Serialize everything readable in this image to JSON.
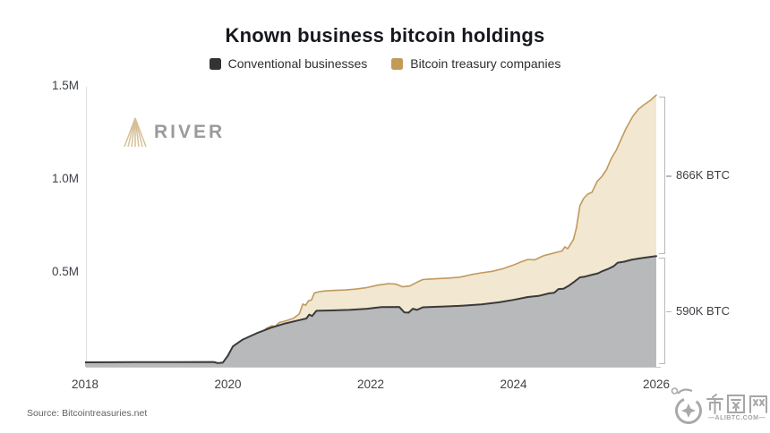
{
  "title": "Known business bitcoin holdings",
  "legend": {
    "items": [
      {
        "label": "Conventional businesses",
        "color": "#333333"
      },
      {
        "label": "Bitcoin treasury companies",
        "color": "#c49a58"
      }
    ]
  },
  "river_watermark": {
    "name": "RIVER"
  },
  "source_note": "Source: Bitcointreasuries.net",
  "site_watermark": {
    "site_name": "币圈网",
    "site_domain": "—ALIBTC.COM—"
  },
  "chart_data": {
    "type": "area",
    "stacked": true,
    "title": "Known business bitcoin holdings",
    "unit": "BTC",
    "grid": false,
    "legend_position": "top",
    "x_domain": [
      2018,
      2026
    ],
    "y_domain_btc": [
      0,
      1500000
    ],
    "x_ticks": [
      "2018",
      "2020",
      "2022",
      "2024",
      "2026"
    ],
    "x_tick_values": [
      2018,
      2020,
      2022,
      2024,
      2026
    ],
    "y_ticks": [
      {
        "label": "0.5M",
        "value_k": 500
      },
      {
        "label": "1.0M",
        "value_k": 1000
      },
      {
        "label": "1.5M",
        "value_k": 1500
      }
    ],
    "annotations": [
      {
        "label": "866K BTC",
        "series": "Bitcoin treasury companies",
        "from_k": 590,
        "to_k": 1456
      },
      {
        "label": "590K BTC",
        "series": "Conventional businesses",
        "from_k": 0,
        "to_k": 590
      }
    ],
    "series": [
      {
        "name": "Conventional businesses",
        "fill": "#b8b9bb",
        "line": "#3a3a3a",
        "points_k": [
          [
            2018.0,
            19
          ],
          [
            2018.7,
            20
          ],
          [
            2019.3,
            20
          ],
          [
            2019.8,
            21
          ],
          [
            2019.86,
            15
          ],
          [
            2019.93,
            18
          ],
          [
            2020.0,
            55
          ],
          [
            2020.07,
            105
          ],
          [
            2020.2,
            140
          ],
          [
            2020.4,
            175
          ],
          [
            2020.6,
            205
          ],
          [
            2020.8,
            228
          ],
          [
            2021.0,
            246
          ],
          [
            2021.1,
            255
          ],
          [
            2021.14,
            276
          ],
          [
            2021.18,
            268
          ],
          [
            2021.24,
            296
          ],
          [
            2021.45,
            298
          ],
          [
            2021.7,
            301
          ],
          [
            2021.95,
            307
          ],
          [
            2022.15,
            316
          ],
          [
            2022.4,
            317
          ],
          [
            2022.47,
            288
          ],
          [
            2022.53,
            286
          ],
          [
            2022.59,
            307
          ],
          [
            2022.65,
            301
          ],
          [
            2022.73,
            315
          ],
          [
            2022.85,
            317
          ],
          [
            2023.1,
            320
          ],
          [
            2023.3,
            324
          ],
          [
            2023.55,
            331
          ],
          [
            2023.8,
            342
          ],
          [
            2024.0,
            355
          ],
          [
            2024.2,
            370
          ],
          [
            2024.35,
            376
          ],
          [
            2024.5,
            390
          ],
          [
            2024.57,
            393
          ],
          [
            2024.63,
            413
          ],
          [
            2024.7,
            415
          ],
          [
            2024.78,
            432
          ],
          [
            2024.86,
            455
          ],
          [
            2024.93,
            476
          ],
          [
            2025.0,
            480
          ],
          [
            2025.1,
            490
          ],
          [
            2025.18,
            497
          ],
          [
            2025.25,
            510
          ],
          [
            2025.33,
            522
          ],
          [
            2025.4,
            535
          ],
          [
            2025.46,
            555
          ],
          [
            2025.55,
            560
          ],
          [
            2025.65,
            570
          ],
          [
            2025.75,
            577
          ],
          [
            2025.85,
            582
          ],
          [
            2026.0,
            590
          ]
        ]
      },
      {
        "name": "Bitcoin treasury companies",
        "fill": "#f2e7d0",
        "line": "#c09a5e",
        "cumulative_top_points_k": [
          [
            2020.53,
            200
          ],
          [
            2020.62,
            216
          ],
          [
            2020.66,
            211
          ],
          [
            2020.72,
            233
          ],
          [
            2020.8,
            241
          ],
          [
            2020.92,
            256
          ],
          [
            2021.0,
            280
          ],
          [
            2021.05,
            332
          ],
          [
            2021.09,
            326
          ],
          [
            2021.13,
            350
          ],
          [
            2021.17,
            354
          ],
          [
            2021.21,
            391
          ],
          [
            2021.28,
            399
          ],
          [
            2021.36,
            403
          ],
          [
            2021.5,
            406
          ],
          [
            2021.65,
            408
          ],
          [
            2021.8,
            413
          ],
          [
            2021.95,
            421
          ],
          [
            2022.1,
            434
          ],
          [
            2022.25,
            442
          ],
          [
            2022.35,
            440
          ],
          [
            2022.45,
            425
          ],
          [
            2022.55,
            430
          ],
          [
            2022.65,
            450
          ],
          [
            2022.73,
            464
          ],
          [
            2022.8,
            466
          ],
          [
            2022.95,
            469
          ],
          [
            2023.1,
            472
          ],
          [
            2023.25,
            477
          ],
          [
            2023.4,
            490
          ],
          [
            2023.55,
            500
          ],
          [
            2023.7,
            508
          ],
          [
            2023.85,
            522
          ],
          [
            2024.0,
            542
          ],
          [
            2024.1,
            558
          ],
          [
            2024.2,
            572
          ],
          [
            2024.3,
            570
          ],
          [
            2024.42,
            592
          ],
          [
            2024.5,
            600
          ],
          [
            2024.6,
            610
          ],
          [
            2024.68,
            618
          ],
          [
            2024.72,
            640
          ],
          [
            2024.76,
            630
          ],
          [
            2024.84,
            680
          ],
          [
            2024.88,
            740
          ],
          [
            2024.93,
            861
          ],
          [
            2024.98,
            899
          ],
          [
            2025.04,
            923
          ],
          [
            2025.1,
            933
          ],
          [
            2025.17,
            990
          ],
          [
            2025.24,
            1019
          ],
          [
            2025.3,
            1053
          ],
          [
            2025.37,
            1115
          ],
          [
            2025.44,
            1159
          ],
          [
            2025.5,
            1212
          ],
          [
            2025.58,
            1279
          ],
          [
            2025.67,
            1341
          ],
          [
            2025.75,
            1380
          ],
          [
            2025.83,
            1404
          ],
          [
            2025.92,
            1428
          ],
          [
            2025.97,
            1445
          ],
          [
            2026.0,
            1456
          ]
        ]
      }
    ]
  }
}
